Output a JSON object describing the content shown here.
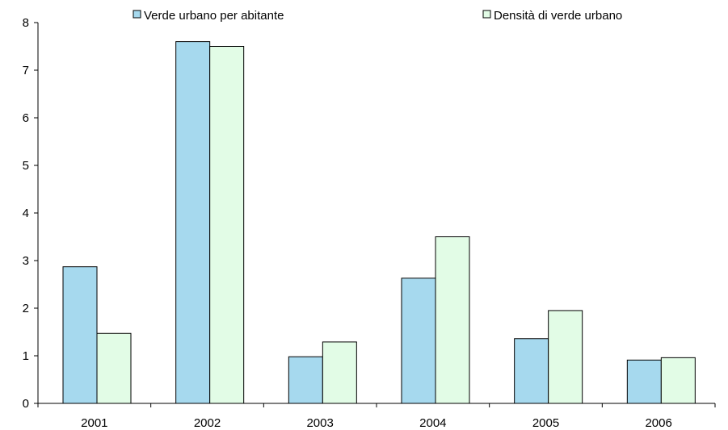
{
  "chart_data": {
    "type": "bar",
    "title": "",
    "xlabel": "",
    "ylabel": "",
    "categories": [
      "2001",
      "2002",
      "2003",
      "2004",
      "2005",
      "2006"
    ],
    "series": [
      {
        "name": "Verde urbano per abitante",
        "values": [
          2.87,
          7.6,
          0.98,
          2.63,
          1.36,
          0.91
        ],
        "color": "#A6D9EE"
      },
      {
        "name": "Densità di verde urbano",
        "values": [
          1.47,
          7.5,
          1.29,
          3.5,
          1.95,
          0.96
        ],
        "color": "#E2FCE6"
      }
    ],
    "ylim": [
      0,
      8
    ],
    "yticks": [
      "0",
      "1",
      "2",
      "3",
      "4",
      "5",
      "6",
      "7",
      "8"
    ],
    "grid": false,
    "legend_position": "top",
    "outline_color": "#000000"
  }
}
